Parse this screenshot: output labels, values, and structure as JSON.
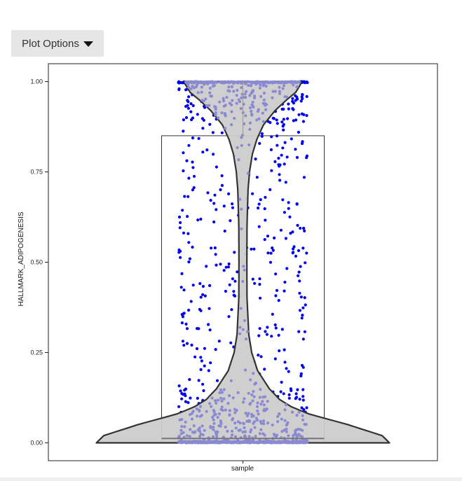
{
  "toolbar": {
    "plot_options_label": "Plot Options",
    "plot_options_icon": "caret-down-icon"
  },
  "chart_data": {
    "type": "violin",
    "xlabel": "sample",
    "ylabel": "HALLMARK_ADIPOGENESIS",
    "categories": [
      "sample"
    ],
    "ylim": [
      -0.05,
      1.05
    ],
    "yticks": [
      0,
      0.25,
      0.5,
      0.75,
      1.0
    ],
    "ytick_labels": [
      "0.00",
      "0.25",
      "0.50",
      "0.75",
      "1.00"
    ],
    "grid": false,
    "boxplot": {
      "q1": 0.0,
      "median": 0.012,
      "q3": 0.85,
      "whisker_low": 0.0,
      "whisker_high": 1.0
    },
    "violin_density_profile": [
      [
        0.0,
        1.0
      ],
      [
        0.02,
        0.95
      ],
      [
        0.05,
        0.72
      ],
      [
        0.08,
        0.45
      ],
      [
        0.1,
        0.33
      ],
      [
        0.12,
        0.25
      ],
      [
        0.15,
        0.18
      ],
      [
        0.2,
        0.1
      ],
      [
        0.25,
        0.06
      ],
      [
        0.3,
        0.04
      ],
      [
        0.4,
        0.028
      ],
      [
        0.5,
        0.027
      ],
      [
        0.6,
        0.028
      ],
      [
        0.7,
        0.035
      ],
      [
        0.75,
        0.045
      ],
      [
        0.8,
        0.065
      ],
      [
        0.84,
        0.095
      ],
      [
        0.88,
        0.14
      ],
      [
        0.92,
        0.22
      ],
      [
        0.95,
        0.3
      ],
      [
        0.97,
        0.36
      ],
      [
        0.99,
        0.39
      ],
      [
        1.0,
        0.4
      ]
    ],
    "jitter_points": {
      "n_points": 1400,
      "color": "#0000ee",
      "in_violin_color": "#8a8ad2",
      "cluster_at_0": 0.3,
      "cluster_at_1": 0.12,
      "near_0_fraction": 0.2,
      "near_1_fraction": 0.1
    },
    "colors": {
      "violin_fill": "#cccccc",
      "violin_stroke": "#333333",
      "box_stroke": "#333333",
      "panel_border": "#222222"
    }
  }
}
